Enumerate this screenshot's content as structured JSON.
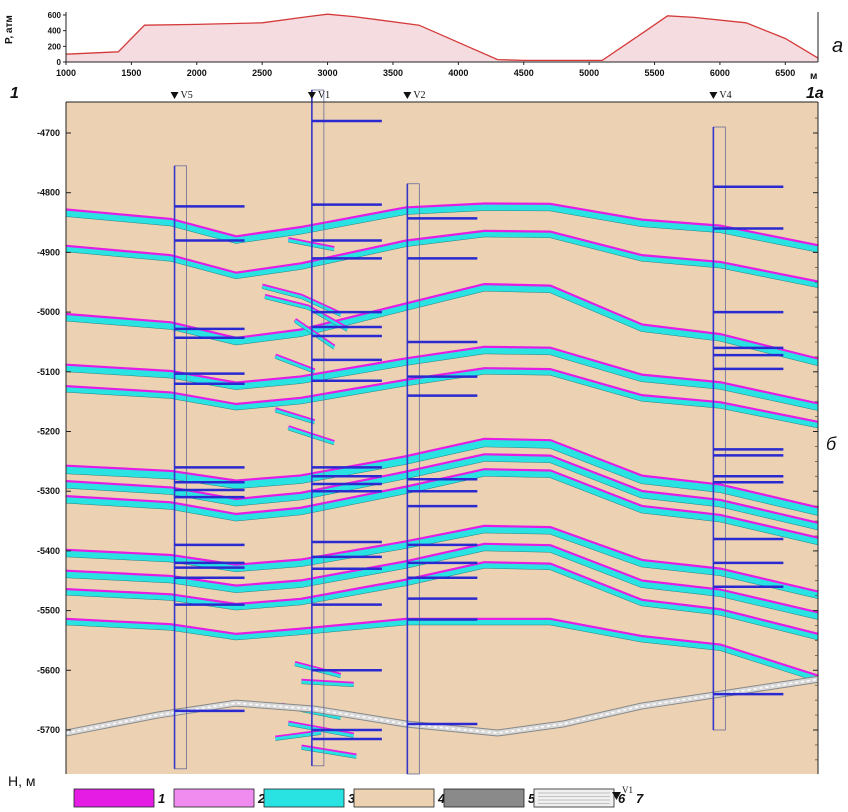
{
  "top_panel": {
    "ylabel": "P, атм",
    "yticks": [
      "600",
      "400",
      "200",
      "0"
    ],
    "xticks": [
      "1000",
      "1500",
      "2000",
      "2500",
      "3000",
      "3500",
      "4000",
      "4500",
      "5000",
      "5500",
      "6000",
      "6500"
    ],
    "x_unit": "м",
    "panel_letter": "а",
    "pressure_profile": [
      [
        1000,
        100
      ],
      [
        1400,
        130
      ],
      [
        1600,
        470
      ],
      [
        2000,
        480
      ],
      [
        2500,
        500
      ],
      [
        2850,
        580
      ],
      [
        3000,
        610
      ],
      [
        3200,
        580
      ],
      [
        3700,
        470
      ],
      [
        4300,
        30
      ],
      [
        4500,
        20
      ],
      [
        5100,
        20
      ],
      [
        5400,
        360
      ],
      [
        5600,
        590
      ],
      [
        5800,
        570
      ],
      [
        6200,
        500
      ],
      [
        6500,
        300
      ],
      [
        6750,
        50
      ]
    ],
    "colors": {
      "line": "#d53a3a",
      "fill": "#f4dce0"
    }
  },
  "section": {
    "left_label": "1",
    "right_label": "1а",
    "panel_letter": "б",
    "ylabel": "H, м",
    "yticks": [
      "-4700",
      "-4800",
      "-4900",
      "-5000",
      "-5100",
      "-5200",
      "-5300",
      "-5400",
      "-5500",
      "-5600",
      "-5700"
    ],
    "wells": [
      {
        "name": "V5",
        "x": 1830
      },
      {
        "name": "V1",
        "x": 2880
      },
      {
        "name": "V2",
        "x": 3610
      },
      {
        "name": "V4",
        "x": 5950
      }
    ],
    "colors": {
      "background": "#ecd2b2",
      "magenta": "#e41ce4",
      "pink": "#f08cf0",
      "cyan": "#29e3e3",
      "well": "#3636c8",
      "perforation": "#2a2ad0",
      "bottom_layer": "#d9d9d9"
    }
  },
  "legend": {
    "items": [
      {
        "label": "1",
        "color": "#e41ce4"
      },
      {
        "label": "2",
        "color": "#f08cf0"
      },
      {
        "label": "3",
        "color": "#29e3e3"
      },
      {
        "label": "4",
        "color": "#ecd2b2"
      },
      {
        "label": "5",
        "color": "#8a8a8a"
      },
      {
        "label": "6",
        "color": "#f0f0f0"
      },
      {
        "label": "7",
        "symbol_text": "V1"
      }
    ]
  }
}
